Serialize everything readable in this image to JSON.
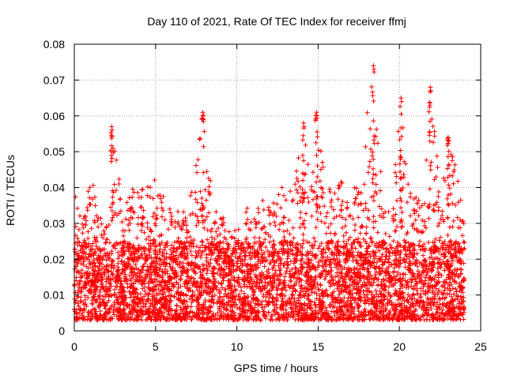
{
  "chart_data": {
    "type": "scatter",
    "title": "Day 110 of 2021, Rate Of TEC Index for receiver ffmj",
    "xlabel": "GPS time / hours",
    "ylabel": "ROTI / TECUs",
    "xlim": [
      0,
      25
    ],
    "ylim": [
      0,
      0.08
    ],
    "xticks": [
      0,
      5,
      10,
      15,
      20,
      25
    ],
    "xtick_labels": [
      "0",
      "5",
      "10",
      "15",
      "20",
      "25"
    ],
    "yticks": [
      0,
      0.01,
      0.02,
      0.03,
      0.04,
      0.05,
      0.06,
      0.07,
      0.08
    ],
    "ytick_labels": [
      "0",
      "0.01",
      "0.02",
      "0.03",
      "0.04",
      "0.05",
      "0.06",
      "0.07",
      "0.08"
    ],
    "grid": true,
    "marker": "+",
    "color": "#ff0000",
    "x_range_of_data": [
      0,
      24
    ],
    "typical_band": [
      0.003,
      0.025
    ],
    "upper_envelope": [
      [
        0.0,
        0.04
      ],
      [
        0.5,
        0.03
      ],
      [
        1.0,
        0.045
      ],
      [
        1.5,
        0.032
      ],
      [
        2.0,
        0.03
      ],
      [
        2.3,
        0.057
      ],
      [
        3.0,
        0.035
      ],
      [
        4.0,
        0.043
      ],
      [
        5.0,
        0.043
      ],
      [
        6.0,
        0.033
      ],
      [
        7.0,
        0.035
      ],
      [
        7.9,
        0.061
      ],
      [
        8.5,
        0.037
      ],
      [
        9.5,
        0.03
      ],
      [
        10.5,
        0.034
      ],
      [
        11.5,
        0.036
      ],
      [
        12.5,
        0.04
      ],
      [
        13.5,
        0.04
      ],
      [
        14.0,
        0.058
      ],
      [
        14.4,
        0.052
      ],
      [
        14.9,
        0.061
      ],
      [
        15.5,
        0.04
      ],
      [
        16.5,
        0.042
      ],
      [
        17.5,
        0.04
      ],
      [
        18.3,
        0.074
      ],
      [
        19.0,
        0.038
      ],
      [
        19.5,
        0.033
      ],
      [
        20.1,
        0.065
      ],
      [
        20.7,
        0.038
      ],
      [
        21.5,
        0.038
      ],
      [
        21.9,
        0.068
      ],
      [
        22.5,
        0.04
      ],
      [
        23.0,
        0.054
      ],
      [
        23.5,
        0.045
      ],
      [
        24.0,
        0.03
      ]
    ],
    "spikes": [
      {
        "x": 2.3,
        "y": 0.057
      },
      {
        "x": 7.9,
        "y": 0.061
      },
      {
        "x": 14.1,
        "y": 0.058
      },
      {
        "x": 14.9,
        "y": 0.061
      },
      {
        "x": 18.4,
        "y": 0.074
      },
      {
        "x": 20.1,
        "y": 0.065
      },
      {
        "x": 21.9,
        "y": 0.068
      },
      {
        "x": 23.0,
        "y": 0.054
      }
    ]
  }
}
